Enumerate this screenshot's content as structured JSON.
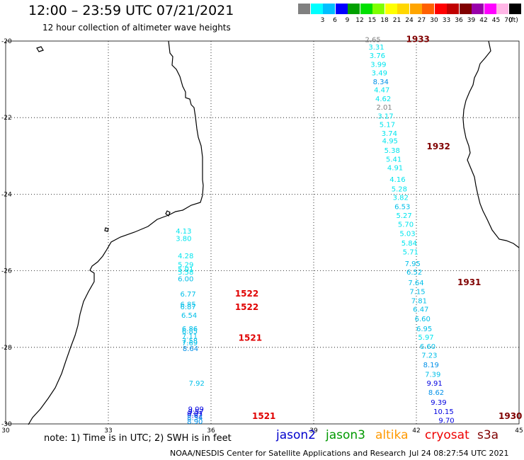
{
  "header": {
    "title": "12:00  –  23:59  UTC  07/21/2021",
    "subtitle": "12 hour collection of altimeter wave heights"
  },
  "legend": {
    "unit": "(ft)",
    "items": [
      {
        "label": "",
        "color": "#808080"
      },
      {
        "label": "3",
        "color": "#00ffff"
      },
      {
        "label": "6",
        "color": "#00bfff"
      },
      {
        "label": "9",
        "color": "#0000ff"
      },
      {
        "label": "12",
        "color": "#00a000"
      },
      {
        "label": "15",
        "color": "#00e000"
      },
      {
        "label": "18",
        "color": "#7fff00"
      },
      {
        "label": "21",
        "color": "#ffff00"
      },
      {
        "label": "24",
        "color": "#ffd700"
      },
      {
        "label": "27",
        "color": "#ffa500"
      },
      {
        "label": "30",
        "color": "#ff6000"
      },
      {
        "label": "33",
        "color": "#ff0000"
      },
      {
        "label": "36",
        "color": "#c00000"
      },
      {
        "label": "39",
        "color": "#800000"
      },
      {
        "label": "42",
        "color": "#9900aa"
      },
      {
        "label": "45",
        "color": "#ff00ff"
      },
      {
        "label": "70",
        "color": "#ffb6e6"
      },
      {
        "label": "",
        "color": "#000000"
      }
    ]
  },
  "axes": {
    "x_ticks": [
      "30",
      "33",
      "36",
      "39",
      "42",
      "45"
    ],
    "y_ticks": [
      "-20",
      "-22",
      "-24",
      "-26",
      "-28",
      "-30"
    ]
  },
  "passes": [
    {
      "label": "1933",
      "lon": 41.7,
      "lat": -19.95,
      "color": "#800000"
    },
    {
      "label": "1932",
      "lon": 42.3,
      "lat": -22.75,
      "color": "#800000"
    },
    {
      "label": "1931",
      "lon": 43.2,
      "lat": -26.3,
      "color": "#800000"
    },
    {
      "label": "1930",
      "lon": 44.4,
      "lat": -29.8,
      "color": "#800000"
    },
    {
      "label": "1522",
      "lon": 36.7,
      "lat": -26.6,
      "color": "#e00000"
    },
    {
      "label": "1522",
      "lon": 36.7,
      "lat": -26.95,
      "color": "#e00000"
    },
    {
      "label": "1521",
      "lon": 36.8,
      "lat": -27.75,
      "color": "#e00000"
    },
    {
      "label": "1521",
      "lon": 37.2,
      "lat": -29.8,
      "color": "#e00000"
    }
  ],
  "observations": [
    {
      "v": "2.65",
      "lon": 40.5,
      "lat": -19.95,
      "c": "#808080"
    },
    {
      "v": "3.31",
      "lon": 40.6,
      "lat": -20.15,
      "c": "#00e5ee"
    },
    {
      "v": "3.76",
      "lon": 40.63,
      "lat": -20.37,
      "c": "#00e5ee"
    },
    {
      "v": "3.99",
      "lon": 40.66,
      "lat": -20.6,
      "c": "#00e5ee"
    },
    {
      "v": "3.49",
      "lon": 40.69,
      "lat": -20.82,
      "c": "#00e5ee"
    },
    {
      "v": "8.34",
      "lon": 40.73,
      "lat": -21.05,
      "c": "#0090e8"
    },
    {
      "v": "4.47",
      "lon": 40.76,
      "lat": -21.27,
      "c": "#00e5ee"
    },
    {
      "v": "4.62",
      "lon": 40.8,
      "lat": -21.5,
      "c": "#00e5ee"
    },
    {
      "v": "2.01",
      "lon": 40.83,
      "lat": -21.72,
      "c": "#808080"
    },
    {
      "v": "3.17",
      "lon": 40.87,
      "lat": -21.95,
      "c": "#00e5ee"
    },
    {
      "v": "5.17",
      "lon": 40.92,
      "lat": -22.17,
      "c": "#00e5ee"
    },
    {
      "v": "3.74",
      "lon": 40.98,
      "lat": -22.4,
      "c": "#00e5ee"
    },
    {
      "v": "4.95",
      "lon": 41.0,
      "lat": -22.6,
      "c": "#00e5ee"
    },
    {
      "v": "5.38",
      "lon": 41.06,
      "lat": -22.85,
      "c": "#00e5ee"
    },
    {
      "v": "5.41",
      "lon": 41.11,
      "lat": -23.08,
      "c": "#00e5ee"
    },
    {
      "v": "4.91",
      "lon": 41.15,
      "lat": -23.3,
      "c": "#00e5ee"
    },
    {
      "v": "4.16",
      "lon": 41.22,
      "lat": -23.6,
      "c": "#00e5ee"
    },
    {
      "v": "5.28",
      "lon": 41.27,
      "lat": -23.85,
      "c": "#00e5ee"
    },
    {
      "v": "3.82",
      "lon": 41.31,
      "lat": -24.08,
      "c": "#00e5ee"
    },
    {
      "v": "6.53",
      "lon": 41.36,
      "lat": -24.32,
      "c": "#00bfe8"
    },
    {
      "v": "5.27",
      "lon": 41.41,
      "lat": -24.55,
      "c": "#00e5ee"
    },
    {
      "v": "5.70",
      "lon": 41.46,
      "lat": -24.78,
      "c": "#00e5ee"
    },
    {
      "v": "5.03",
      "lon": 41.51,
      "lat": -25.02,
      "c": "#00e5ee"
    },
    {
      "v": "5.84",
      "lon": 41.56,
      "lat": -25.27,
      "c": "#00e5ee"
    },
    {
      "v": "5.71",
      "lon": 41.6,
      "lat": -25.5,
      "c": "#00e5ee"
    },
    {
      "v": "7.95",
      "lon": 41.66,
      "lat": -25.8,
      "c": "#00bfe8"
    },
    {
      "v": "6.52",
      "lon": 41.71,
      "lat": -26.03,
      "c": "#00bfe8"
    },
    {
      "v": "7.64",
      "lon": 41.76,
      "lat": -26.3,
      "c": "#00bfe8"
    },
    {
      "v": "7.15",
      "lon": 41.8,
      "lat": -26.53,
      "c": "#00bfe8"
    },
    {
      "v": "7.81",
      "lon": 41.85,
      "lat": -26.77,
      "c": "#00bfe8"
    },
    {
      "v": "6.47",
      "lon": 41.9,
      "lat": -27.0,
      "c": "#00bfe8"
    },
    {
      "v": "6.60",
      "lon": 41.95,
      "lat": -27.25,
      "c": "#00bfe8"
    },
    {
      "v": "6.95",
      "lon": 42.0,
      "lat": -27.5,
      "c": "#00bfe8"
    },
    {
      "v": "5.97",
      "lon": 42.05,
      "lat": -27.73,
      "c": "#00e5ee"
    },
    {
      "v": "6.60",
      "lon": 42.1,
      "lat": -27.97,
      "c": "#00bfe8"
    },
    {
      "v": "7.23",
      "lon": 42.15,
      "lat": -28.2,
      "c": "#00bfe8"
    },
    {
      "v": "8.19",
      "lon": 42.2,
      "lat": -28.45,
      "c": "#0090e8"
    },
    {
      "v": "7.39",
      "lon": 42.25,
      "lat": -28.7,
      "c": "#00bfe8"
    },
    {
      "v": "9.91",
      "lon": 42.3,
      "lat": -28.93,
      "c": "#0000e0"
    },
    {
      "v": "8.62",
      "lon": 42.35,
      "lat": -29.17,
      "c": "#0090e8"
    },
    {
      "v": "9.39",
      "lon": 42.42,
      "lat": -29.43,
      "c": "#0000e0"
    },
    {
      "v": "10.15",
      "lon": 42.5,
      "lat": -29.67,
      "c": "#0000e0"
    },
    {
      "v": "9.70",
      "lon": 42.65,
      "lat": -29.9,
      "c": "#0000e0"
    },
    {
      "v": "4.13",
      "lon": 34.97,
      "lat": -24.95,
      "c": "#00e5ee"
    },
    {
      "v": "3.80",
      "lon": 34.97,
      "lat": -25.15,
      "c": "#00e5ee"
    },
    {
      "v": "4.28",
      "lon": 35.03,
      "lat": -25.6,
      "c": "#00e5ee"
    },
    {
      "v": "5.29",
      "lon": 35.03,
      "lat": -25.83,
      "c": "#00e5ee"
    },
    {
      "v": "5.01",
      "lon": 35.03,
      "lat": -25.95,
      "c": "#00e5ee"
    },
    {
      "v": "5.58",
      "lon": 35.03,
      "lat": -26.03,
      "c": "#00e5ee"
    },
    {
      "v": "6.00",
      "lon": 35.03,
      "lat": -26.2,
      "c": "#00bfe8"
    },
    {
      "v": "6.77",
      "lon": 35.1,
      "lat": -26.6,
      "c": "#00bfe8"
    },
    {
      "v": "6.85",
      "lon": 35.1,
      "lat": -26.87,
      "c": "#00bfe8"
    },
    {
      "v": "6.87",
      "lon": 35.1,
      "lat": -26.93,
      "c": "#00bfe8"
    },
    {
      "v": "6.54",
      "lon": 35.13,
      "lat": -27.15,
      "c": "#00bfe8"
    },
    {
      "v": "6.86",
      "lon": 35.15,
      "lat": -27.5,
      "c": "#00bfe8"
    },
    {
      "v": "6.85",
      "lon": 35.15,
      "lat": -27.57,
      "c": "#00bfe8"
    },
    {
      "v": "7.11",
      "lon": 35.15,
      "lat": -27.7,
      "c": "#00bfe8"
    },
    {
      "v": "7.58",
      "lon": 35.15,
      "lat": -27.82,
      "c": "#00bfe8"
    },
    {
      "v": "7.69",
      "lon": 35.15,
      "lat": -27.87,
      "c": "#00bfe8"
    },
    {
      "v": "8.64",
      "lon": 35.17,
      "lat": -28.02,
      "c": "#0090e8"
    },
    {
      "v": "7.92",
      "lon": 35.35,
      "lat": -28.93,
      "c": "#00bfe8"
    },
    {
      "v": "9.09",
      "lon": 35.33,
      "lat": -29.6,
      "c": "#0000e0"
    },
    {
      "v": "9.57",
      "lon": 35.33,
      "lat": -29.67,
      "c": "#0000e0"
    },
    {
      "v": "9.01",
      "lon": 35.3,
      "lat": -29.72,
      "c": "#0000e0"
    },
    {
      "v": "9.62",
      "lon": 35.3,
      "lat": -29.77,
      "c": "#0000e0"
    },
    {
      "v": "8.54",
      "lon": 35.3,
      "lat": -29.82,
      "c": "#0090e8"
    },
    {
      "v": "8.90",
      "lon": 35.3,
      "lat": -29.93,
      "c": "#0090e8"
    }
  ],
  "footer": {
    "note": "note:  1) Time is in UTC;  2) SWH is in feet",
    "satellites": [
      {
        "name": "jason2",
        "color": "#0000cc"
      },
      {
        "name": "jason3",
        "color": "#009900"
      },
      {
        "name": "altika",
        "color": "#ff9900"
      },
      {
        "name": "cryosat",
        "color": "#ee0000"
      },
      {
        "name": "s3a",
        "color": "#800000"
      }
    ],
    "credit": "NOAA/NESDIS Center for Satellite Applications and Research",
    "timestamp": "Jul 24 08:27:54 UTC 2021"
  }
}
